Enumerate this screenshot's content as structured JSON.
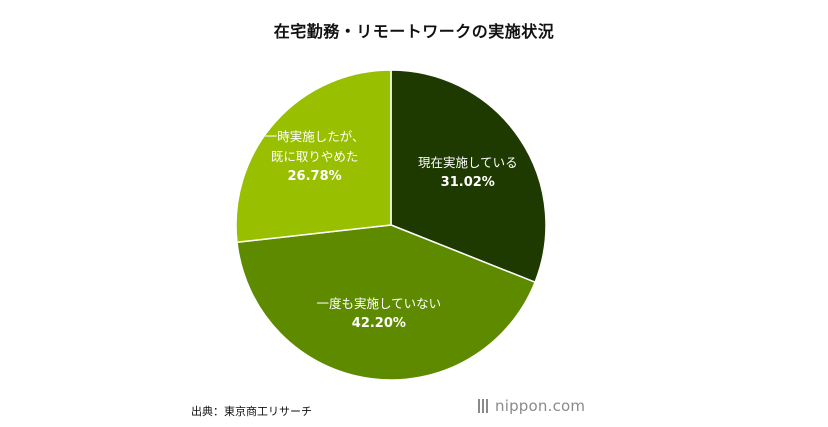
{
  "header": {
    "title": "在宅勤務・リモートワークの実施状況"
  },
  "chart_data": {
    "type": "pie",
    "title": "在宅勤務・リモートワークの実施状況",
    "start": "12 o'clock, clockwise",
    "slices": [
      {
        "label": [
          "現在実施している"
        ],
        "value": 31.02,
        "value_label": "31.02%",
        "color": "#1e3a00"
      },
      {
        "label": [
          "一度も実施していない"
        ],
        "value": 42.2,
        "value_label": "42.20%",
        "color": "#5e8a00"
      },
      {
        "label": [
          "一時実施したが、",
          "既に取りやめた"
        ],
        "value": 26.78,
        "value_label": "26.78%",
        "color": "#98bf00"
      }
    ]
  },
  "footer": {
    "source": "出典：東京商工リサーチ",
    "logo_main": "nippon",
    "logo_dot": ".",
    "logo_tld": "com"
  }
}
